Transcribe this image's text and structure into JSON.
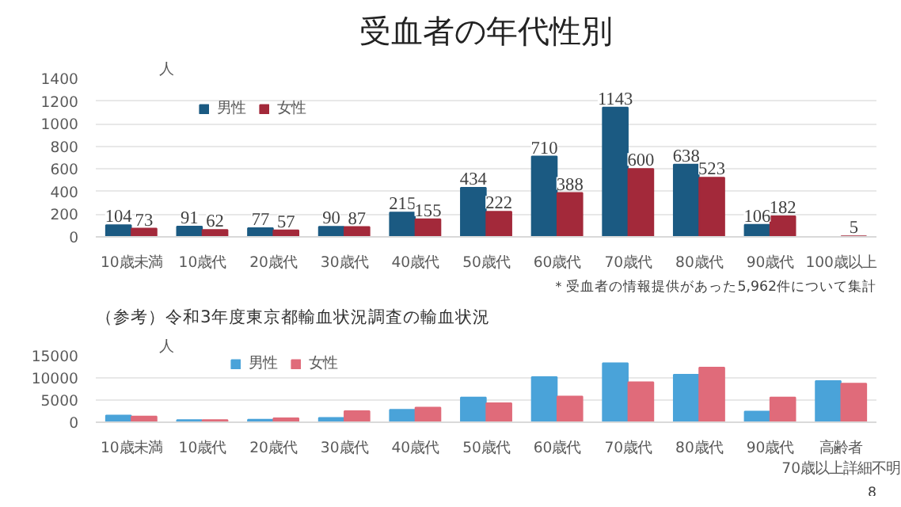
{
  "chart_data": [
    {
      "type": "bar",
      "title": "受血者の年代性別",
      "ylabel": "人",
      "categories": [
        "10歳未満",
        "10歳代",
        "20歳代",
        "30歳代",
        "40歳代",
        "50歳代",
        "60歳代",
        "70歳代",
        "80歳代",
        "90歳代",
        "100歳以上"
      ],
      "series": [
        {
          "name": "男性",
          "color": "#1b5a82",
          "values": [
            104,
            91,
            77,
            90,
            215,
            434,
            710,
            1143,
            638,
            106,
            null
          ]
        },
        {
          "name": "女性",
          "color": "#a3293a",
          "values": [
            73,
            62,
            57,
            87,
            155,
            222,
            388,
            600,
            523,
            182,
            5
          ]
        }
      ],
      "ylim": [
        0,
        1400
      ],
      "yticks": [
        0,
        200,
        400,
        600,
        800,
        1000,
        1200,
        1400
      ],
      "grid": "y",
      "legend": "top left",
      "data_labels": true,
      "annotations": [
        "＊受血者の情報提供があった5,962件について集計"
      ]
    },
    {
      "type": "bar",
      "title": "（参考）令和3年度東京都輸血状況調査の輸血状況",
      "ylabel": "人",
      "categories": [
        "10歳未満",
        "10歳代",
        "20歳代",
        "30歳代",
        "40歳代",
        "50歳代",
        "60歳代",
        "70歳代",
        "80歳代",
        "90歳代",
        "高齢者\n70歳以上詳細不明"
      ],
      "series": [
        {
          "name": "男性",
          "color": "#4aa3d9",
          "values": [
            1500,
            500,
            600,
            1000,
            2800,
            5600,
            10200,
            13300,
            10700,
            2400,
            9300
          ]
        },
        {
          "name": "女性",
          "color": "#e06b7a",
          "values": [
            1300,
            500,
            900,
            2500,
            3300,
            4300,
            5800,
            9000,
            12300,
            5600,
            8700
          ]
        }
      ],
      "ylim": [
        0,
        15000
      ],
      "yticks": [
        0,
        5000,
        10000,
        15000
      ],
      "grid": "y",
      "legend": "top left",
      "annotations": [
        "8"
      ]
    }
  ]
}
